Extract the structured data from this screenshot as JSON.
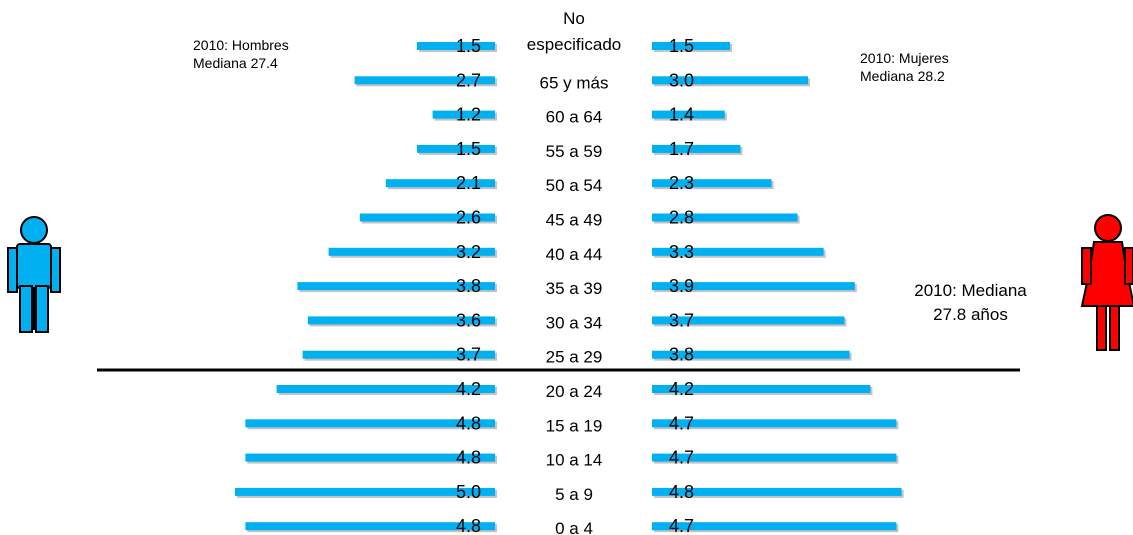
{
  "chart_data": {
    "type": "bar",
    "categories": [
      "No especificado",
      "65 y más",
      "60 a 64",
      "55 a 59",
      "50 a 54",
      "45 a 49",
      "40 a 44",
      "35 a 39",
      "30 a 34",
      "25 a 29",
      "20 a 24",
      "15 a 19",
      "10 a 14",
      "5 a 9",
      "0 a 4"
    ],
    "series": [
      {
        "values": [
          1.5,
          2.7,
          1.2,
          1.5,
          2.1,
          2.6,
          3.2,
          3.8,
          3.6,
          3.7,
          4.2,
          4.8,
          4.8,
          5.0,
          4.8
        ]
      },
      {
        "values": [
          1.5,
          3.0,
          1.4,
          1.7,
          2.3,
          2.8,
          3.3,
          3.9,
          3.7,
          3.8,
          4.2,
          4.7,
          4.7,
          4.8,
          4.7
        ]
      }
    ],
    "value_labels_left": [
      "1.5",
      "2.7",
      "1.2",
      "1.5",
      "2.1",
      "2.6",
      "3.2",
      "3.8",
      "3.6",
      "3.7",
      "4.2",
      "4.8",
      "4.8",
      "5.0",
      "4.8"
    ],
    "value_labels_right": [
      "1.5",
      "3.0",
      "1.4",
      "1.7",
      "2.3",
      "2.8",
      "3.3",
      "3.9",
      "3.7",
      "3.8",
      "4.2",
      "4.7",
      "4.7",
      "4.8",
      "4.7"
    ],
    "divider_between": [
      "25 a 29",
      "20 a 24"
    ],
    "bar_color": "#00b0f0",
    "male_color": "#00b0f0",
    "female_color": "#ff0000"
  },
  "notes": {
    "men_line1": "2010: Hombres",
    "men_line2": "Mediana 27.4",
    "women_line1": "2010: Mujeres",
    "women_line2": "Mediana 28.2",
    "median_line1": "2010: Mediana",
    "median_line2": "27.8 años"
  },
  "icons": {
    "left": "man-icon",
    "right": "woman-icon"
  }
}
